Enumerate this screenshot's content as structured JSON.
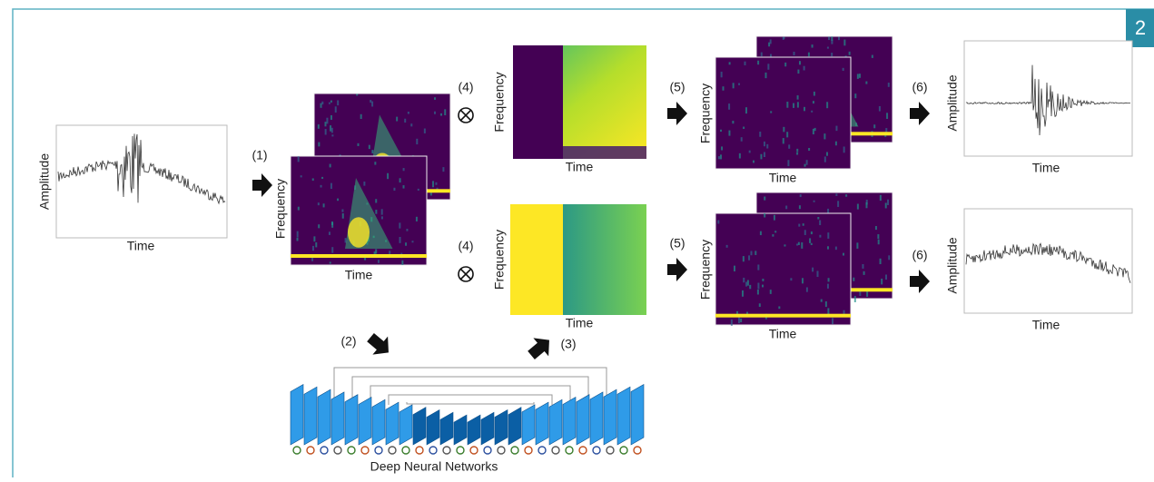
{
  "badge": "2",
  "input": {
    "y_label": "Amplitude",
    "x_label": "Time"
  },
  "step1": "(1)",
  "spectrogram": {
    "y_label": "Frequency",
    "x_label": "Time"
  },
  "step2": "(2)",
  "step3": "(3)",
  "network": {
    "label": "Deep Neural Networks"
  },
  "masks": [
    {
      "step": "(4)",
      "y_label": "Frequency",
      "x_label": "Time"
    },
    {
      "step": "(4)",
      "y_label": "Frequency",
      "x_label": "Time"
    }
  ],
  "separated": [
    {
      "step": "(5)",
      "y_label": "Frequency",
      "x_label": "Time"
    },
    {
      "step": "(5)",
      "y_label": "Frequency",
      "x_label": "Time"
    }
  ],
  "outputs": [
    {
      "step": "(6)",
      "y_label": "Amplitude",
      "x_label": "Time"
    },
    {
      "step": "(6)",
      "y_label": "Amplitude",
      "x_label": "Time"
    }
  ]
}
